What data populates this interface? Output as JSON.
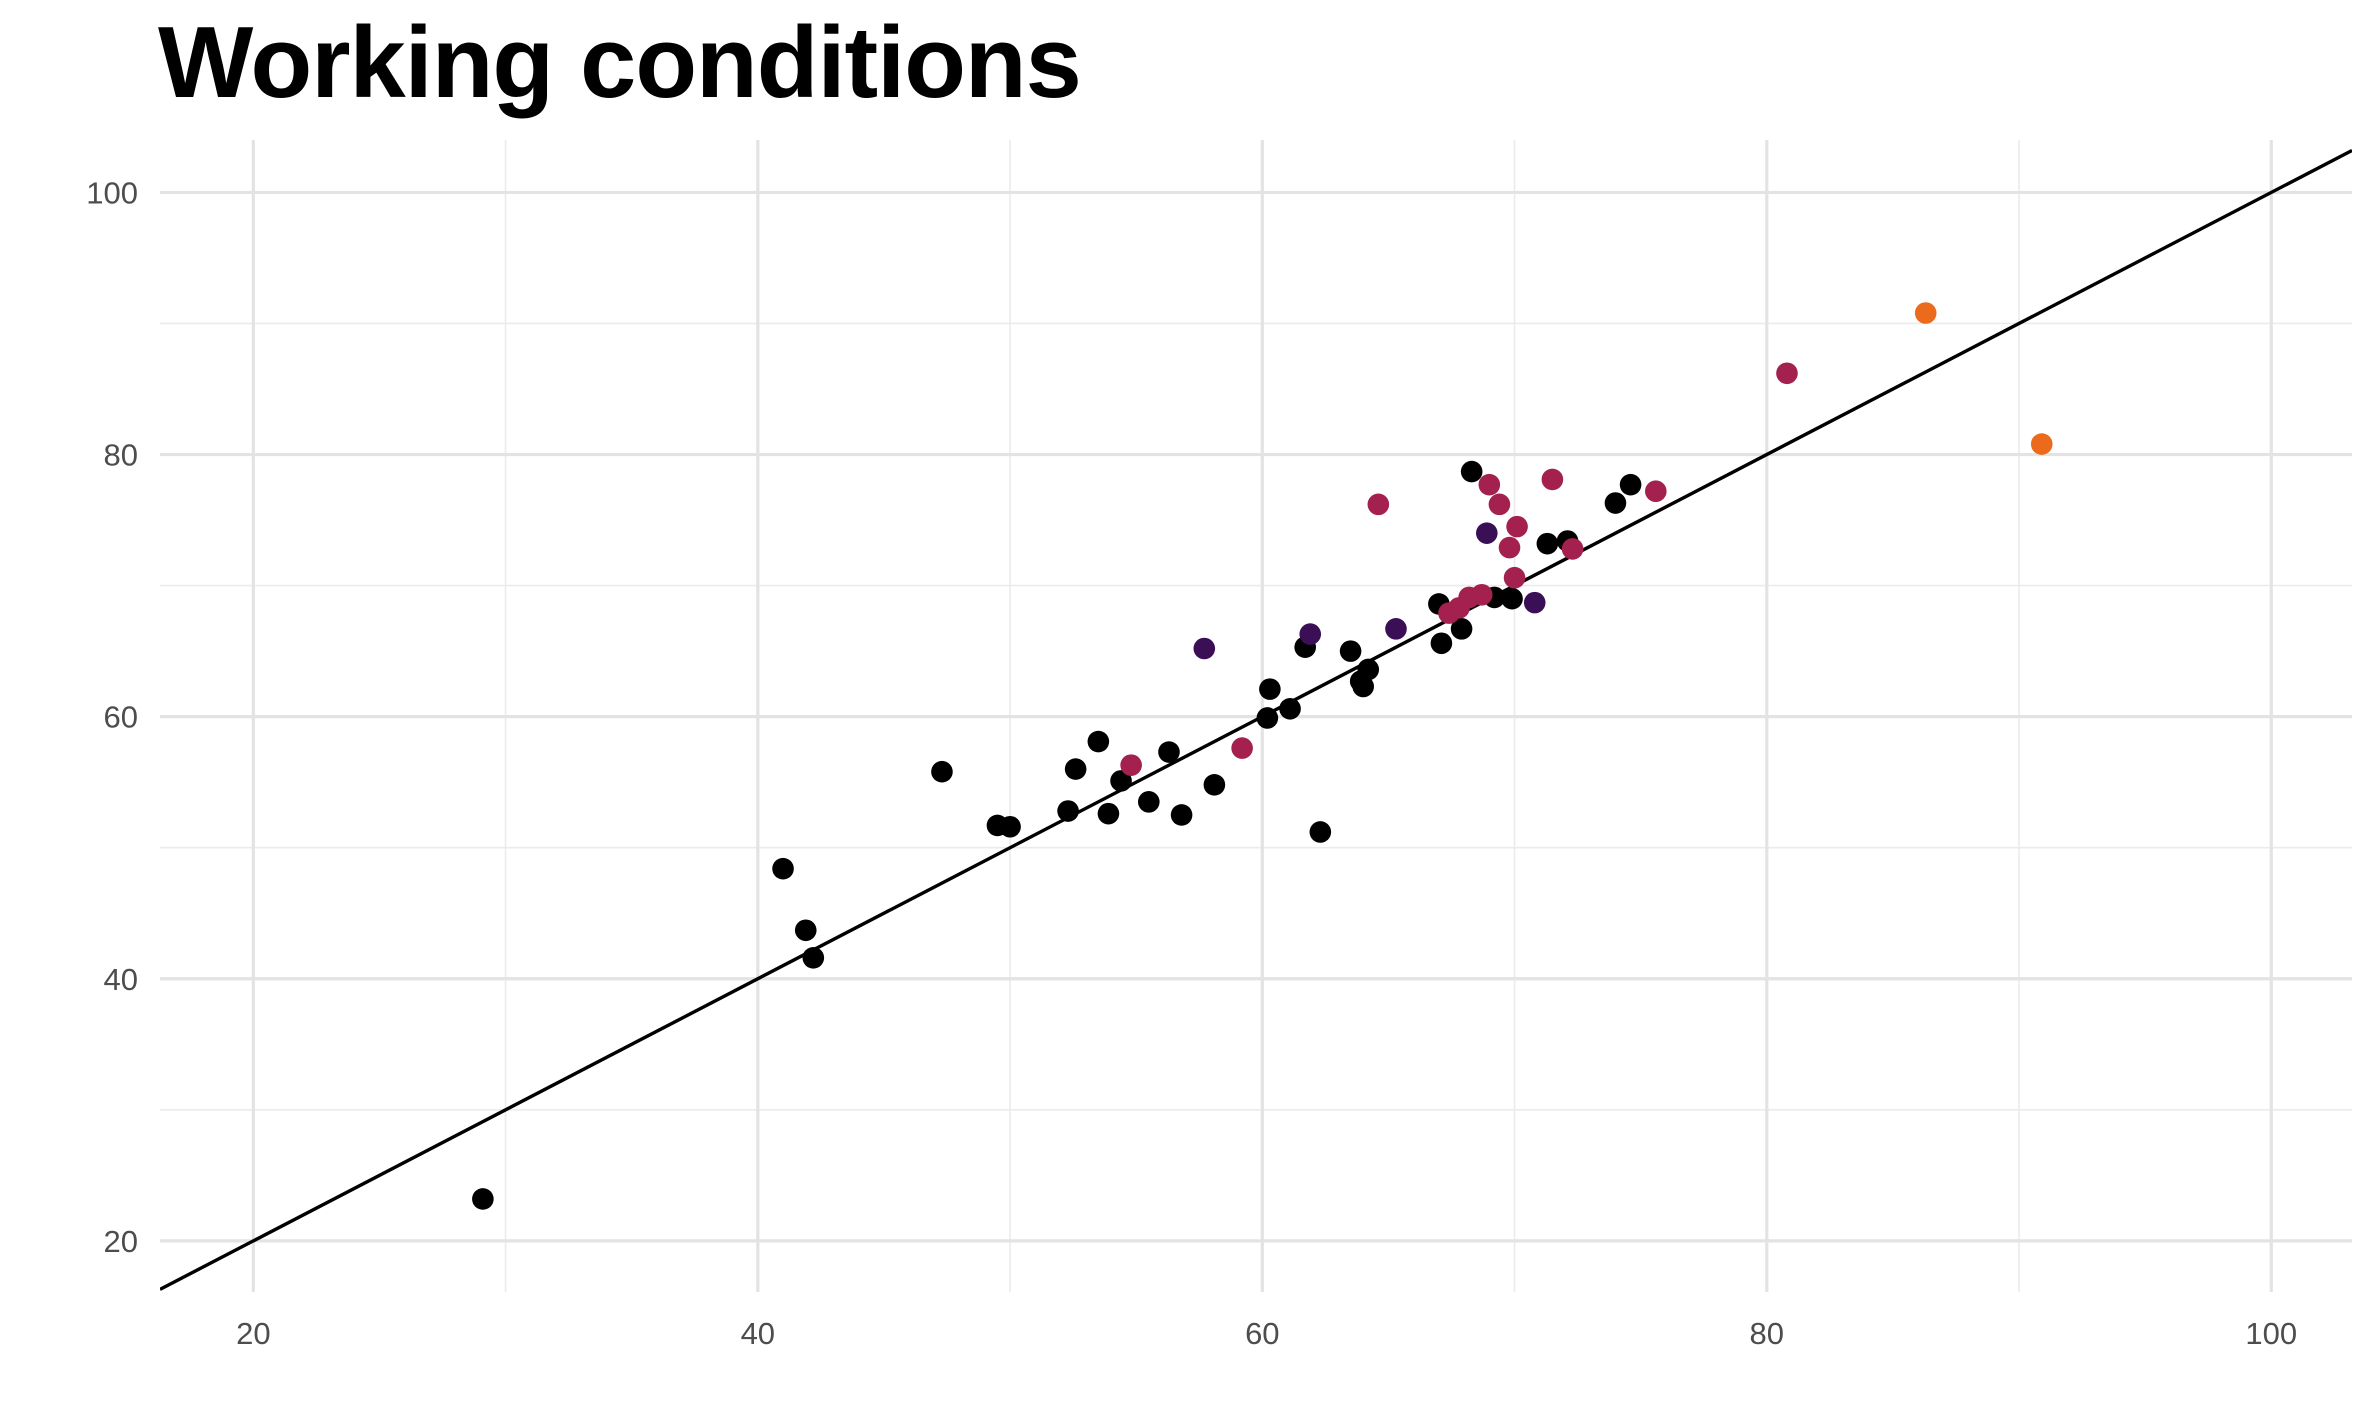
{
  "chart_data": {
    "type": "scatter",
    "title": "Working conditions",
    "xlabel": "",
    "ylabel": "",
    "xlim": [
      16.3,
      103.2
    ],
    "ylim": [
      16.1,
      104
    ],
    "x_ticks": [
      20,
      40,
      60,
      80,
      100
    ],
    "y_ticks": [
      20,
      40,
      60,
      80,
      100
    ],
    "grid": true,
    "legend": "none",
    "reference_line": {
      "type": "identity",
      "label": "",
      "color": "#000000"
    },
    "color_groups": {
      "black": "#000000",
      "indigo": "#3b0f56",
      "crimson": "#a3204f",
      "orange": "#ec6a1b"
    },
    "points": [
      {
        "x": 29.1,
        "y": 23.2,
        "group": "black"
      },
      {
        "x": 41.0,
        "y": 48.4,
        "group": "black"
      },
      {
        "x": 41.9,
        "y": 43.7,
        "group": "black"
      },
      {
        "x": 42.2,
        "y": 41.6,
        "group": "black"
      },
      {
        "x": 47.3,
        "y": 55.8,
        "group": "black"
      },
      {
        "x": 49.5,
        "y": 51.7,
        "group": "black"
      },
      {
        "x": 50.0,
        "y": 51.6,
        "group": "black"
      },
      {
        "x": 52.3,
        "y": 52.8,
        "group": "black"
      },
      {
        "x": 52.6,
        "y": 56.0,
        "group": "black"
      },
      {
        "x": 53.5,
        "y": 58.1,
        "group": "black"
      },
      {
        "x": 53.9,
        "y": 52.6,
        "group": "black"
      },
      {
        "x": 54.4,
        "y": 55.1,
        "group": "black"
      },
      {
        "x": 55.5,
        "y": 53.5,
        "group": "black"
      },
      {
        "x": 56.3,
        "y": 57.3,
        "group": "black"
      },
      {
        "x": 56.8,
        "y": 52.5,
        "group": "black"
      },
      {
        "x": 58.1,
        "y": 54.8,
        "group": "black"
      },
      {
        "x": 60.2,
        "y": 59.9,
        "group": "black"
      },
      {
        "x": 60.3,
        "y": 62.1,
        "group": "black"
      },
      {
        "x": 61.1,
        "y": 60.6,
        "group": "black"
      },
      {
        "x": 61.7,
        "y": 65.3,
        "group": "black"
      },
      {
        "x": 62.3,
        "y": 51.2,
        "group": "black"
      },
      {
        "x": 63.5,
        "y": 65.0,
        "group": "black"
      },
      {
        "x": 63.9,
        "y": 62.7,
        "group": "black"
      },
      {
        "x": 64.0,
        "y": 62.3,
        "group": "black"
      },
      {
        "x": 64.2,
        "y": 63.6,
        "group": "black"
      },
      {
        "x": 67.0,
        "y": 68.6,
        "group": "black"
      },
      {
        "x": 67.1,
        "y": 65.6,
        "group": "black"
      },
      {
        "x": 67.9,
        "y": 66.7,
        "group": "black"
      },
      {
        "x": 68.3,
        "y": 78.7,
        "group": "black"
      },
      {
        "x": 69.2,
        "y": 69.1,
        "group": "black"
      },
      {
        "x": 69.9,
        "y": 69.0,
        "group": "black"
      },
      {
        "x": 71.3,
        "y": 73.2,
        "group": "black"
      },
      {
        "x": 72.1,
        "y": 73.4,
        "group": "black"
      },
      {
        "x": 74.0,
        "y": 76.3,
        "group": "black"
      },
      {
        "x": 74.6,
        "y": 77.7,
        "group": "black"
      },
      {
        "x": 57.7,
        "y": 65.2,
        "group": "indigo"
      },
      {
        "x": 61.9,
        "y": 66.3,
        "group": "indigo"
      },
      {
        "x": 65.3,
        "y": 66.7,
        "group": "indigo"
      },
      {
        "x": 68.9,
        "y": 74.0,
        "group": "indigo"
      },
      {
        "x": 70.8,
        "y": 68.7,
        "group": "indigo"
      },
      {
        "x": 54.8,
        "y": 56.3,
        "group": "crimson"
      },
      {
        "x": 59.2,
        "y": 57.6,
        "group": "crimson"
      },
      {
        "x": 64.6,
        "y": 76.2,
        "group": "crimson"
      },
      {
        "x": 67.4,
        "y": 67.9,
        "group": "crimson"
      },
      {
        "x": 67.8,
        "y": 68.3,
        "group": "crimson"
      },
      {
        "x": 68.2,
        "y": 69.1,
        "group": "crimson"
      },
      {
        "x": 68.7,
        "y": 69.3,
        "group": "crimson"
      },
      {
        "x": 69.0,
        "y": 77.7,
        "group": "crimson"
      },
      {
        "x": 69.4,
        "y": 76.2,
        "group": "crimson"
      },
      {
        "x": 69.8,
        "y": 72.9,
        "group": "crimson"
      },
      {
        "x": 70.1,
        "y": 74.5,
        "group": "crimson"
      },
      {
        "x": 70.0,
        "y": 70.6,
        "group": "crimson"
      },
      {
        "x": 71.5,
        "y": 78.1,
        "group": "crimson"
      },
      {
        "x": 72.3,
        "y": 72.8,
        "group": "crimson"
      },
      {
        "x": 75.6,
        "y": 77.2,
        "group": "crimson"
      },
      {
        "x": 80.8,
        "y": 86.2,
        "group": "crimson"
      },
      {
        "x": 86.3,
        "y": 90.8,
        "group": "orange"
      },
      {
        "x": 90.9,
        "y": 80.8,
        "group": "orange"
      }
    ]
  }
}
